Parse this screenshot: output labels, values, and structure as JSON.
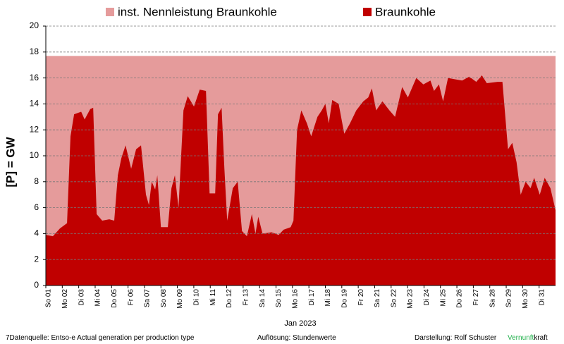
{
  "chart_data": {
    "type": "area",
    "y_label": "[P]  = GW",
    "x_label": "Jan 2023",
    "xlim": [
      0,
      31
    ],
    "ylim": [
      0,
      20
    ],
    "yticks": [
      0,
      2,
      4,
      6,
      8,
      10,
      12,
      14,
      16,
      18,
      20
    ],
    "xticks": [
      {
        "value": 0,
        "label": "So 01"
      },
      {
        "value": 1,
        "label": "Mo 02"
      },
      {
        "value": 2,
        "label": "Di 03"
      },
      {
        "value": 3,
        "label": "Mi 04"
      },
      {
        "value": 4,
        "label": "Do 05"
      },
      {
        "value": 5,
        "label": "Fr 06"
      },
      {
        "value": 6,
        "label": "Sa 07"
      },
      {
        "value": 7,
        "label": "So 08"
      },
      {
        "value": 8,
        "label": "Mo 09"
      },
      {
        "value": 9,
        "label": "Di 10"
      },
      {
        "value": 10,
        "label": "Mi 11"
      },
      {
        "value": 11,
        "label": "Do 12"
      },
      {
        "value": 12,
        "label": "Fr 13"
      },
      {
        "value": 13,
        "label": "Sa 14"
      },
      {
        "value": 14,
        "label": "So 15"
      },
      {
        "value": 15,
        "label": "Mo 16"
      },
      {
        "value": 16,
        "label": "Di 17"
      },
      {
        "value": 17,
        "label": "Mi 18"
      },
      {
        "value": 18,
        "label": "Do 19"
      },
      {
        "value": 19,
        "label": "Fr 20"
      },
      {
        "value": 20,
        "label": "Sa 21"
      },
      {
        "value": 21,
        "label": "So 22"
      },
      {
        "value": 22,
        "label": "Mo 23"
      },
      {
        "value": 23,
        "label": "Di 24"
      },
      {
        "value": 24,
        "label": "Mi 25"
      },
      {
        "value": 25,
        "label": "Do 26"
      },
      {
        "value": 26,
        "label": "Fr 27"
      },
      {
        "value": 27,
        "label": "Sa 28"
      },
      {
        "value": 28,
        "label": "So 29"
      },
      {
        "value": 29,
        "label": "Mo 30"
      },
      {
        "value": 30,
        "label": "Di 31"
      }
    ],
    "grid": true,
    "legend": "top",
    "series": [
      {
        "name": "inst. Nennleistung Braunkohle",
        "color": "#e59b9b",
        "x": [
          0,
          31
        ],
        "values": [
          17.7,
          17.7
        ]
      },
      {
        "name": "Braunkohle",
        "color": "#c00000",
        "x": [
          0,
          0.43,
          0.86,
          1.29,
          1.5,
          1.72,
          2.15,
          2.36,
          2.7,
          2.88,
          3.09,
          3.43,
          3.86,
          4.16,
          4.38,
          4.59,
          4.85,
          5.19,
          5.49,
          5.79,
          6.09,
          6.27,
          6.44,
          6.65,
          6.78,
          7.0,
          7.42,
          7.64,
          7.85,
          8.07,
          8.37,
          8.63,
          9.01,
          9.36,
          9.74,
          9.96,
          10.3,
          10.47,
          10.69,
          10.86,
          11.03,
          11.37,
          11.67,
          11.93,
          12.23,
          12.53,
          12.75,
          12.92,
          13.18,
          13.73,
          14.16,
          14.46,
          14.89,
          15.06,
          15.28,
          15.54,
          15.88,
          16.14,
          16.52,
          16.78,
          17.0,
          17.21,
          17.42,
          17.81,
          18.15,
          18.5,
          18.88,
          19.31,
          19.61,
          19.83,
          20.09,
          20.47,
          20.9,
          21.24,
          21.67,
          22.02,
          22.53,
          22.96,
          23.39,
          23.61,
          23.91,
          24.16,
          24.46,
          24.89,
          25.32,
          25.75,
          26.18,
          26.52,
          26.82,
          27.47,
          27.77,
          28.11,
          28.37,
          28.63,
          28.88,
          29.18,
          29.48,
          29.7,
          30.04,
          30.34,
          30.69,
          31.0
        ],
        "values": [
          3.9,
          3.8,
          4.4,
          4.8,
          11.5,
          13.2,
          13.4,
          12.8,
          13.6,
          13.7,
          5.5,
          5.0,
          5.1,
          5.0,
          8.5,
          9.8,
          10.8,
          9.0,
          10.5,
          10.8,
          7.0,
          6.2,
          8.0,
          7.4,
          8.5,
          4.5,
          4.5,
          7.5,
          8.5,
          6.0,
          13.5,
          14.6,
          13.8,
          15.1,
          15.0,
          7.1,
          7.1,
          13.2,
          13.7,
          9.0,
          5.0,
          7.5,
          8.0,
          4.2,
          3.8,
          5.5,
          4.0,
          5.3,
          4.0,
          4.1,
          3.9,
          4.3,
          4.5,
          5.0,
          12.0,
          13.5,
          12.5,
          11.5,
          13.0,
          13.5,
          14.0,
          12.5,
          14.3,
          14.0,
          11.7,
          12.5,
          13.5,
          14.2,
          14.5,
          15.2,
          13.5,
          14.2,
          13.5,
          13.0,
          15.3,
          14.5,
          16.0,
          15.5,
          15.8,
          15.0,
          15.5,
          14.2,
          16.0,
          15.9,
          15.8,
          16.1,
          15.7,
          16.2,
          15.6,
          15.7,
          15.7,
          10.5,
          11.0,
          9.5,
          7.0,
          8.0,
          7.5,
          8.3,
          7.0,
          8.3,
          7.5,
          5.8
        ]
      }
    ],
    "footer": {
      "source": "7Datenquelle: Entso-e  Actual generation per production type",
      "resolution": "Auflösung: Stundenwerte",
      "author": "Darstellung:  Rolf Schuster",
      "brand_green": "Vernunft",
      "brand_black": "kraft"
    }
  }
}
